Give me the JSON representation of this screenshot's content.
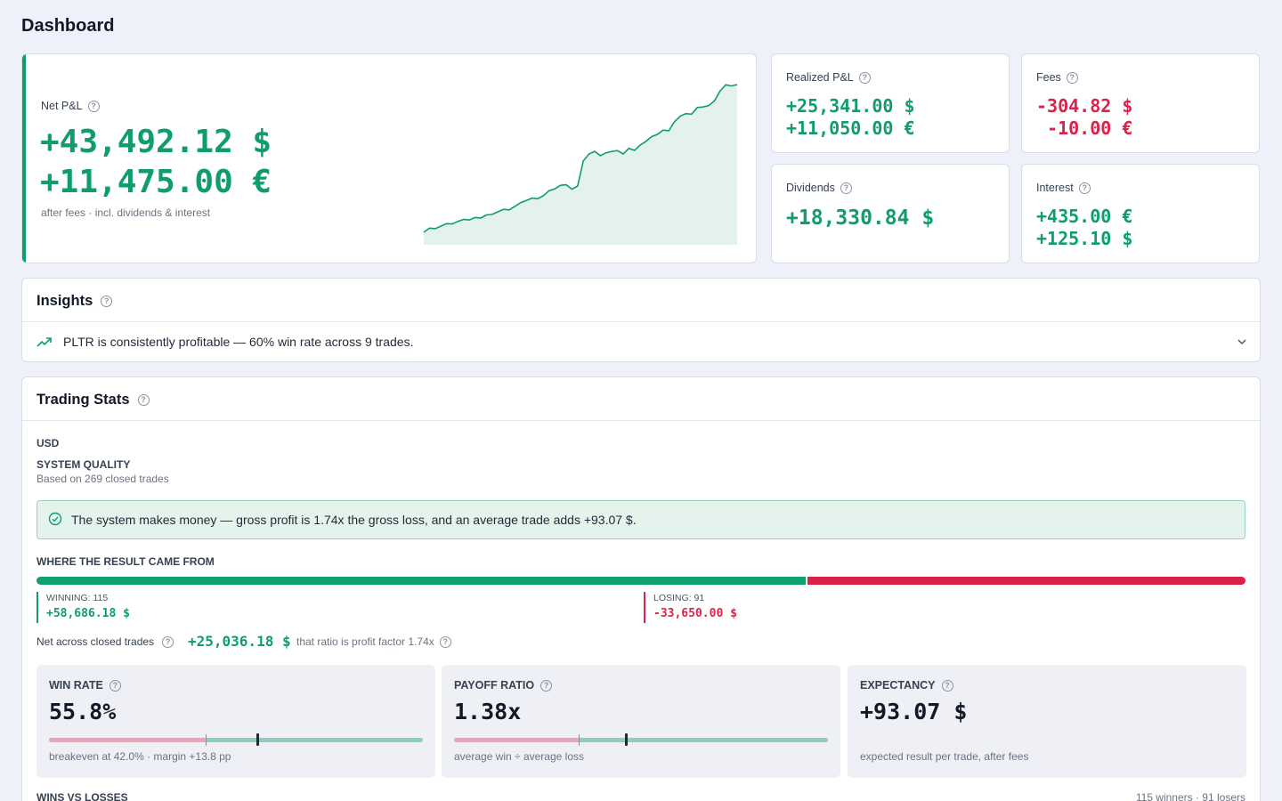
{
  "page": {
    "title": "Dashboard"
  },
  "net_pnl": {
    "label": "Net P&L",
    "usd": "+43,492.12 $",
    "eur": "+11,475.00 €",
    "subtitle": "after fees · incl. dividends & interest"
  },
  "realized": {
    "label": "Realized P&L",
    "usd": "+25,341.00 $",
    "eur": "+11,050.00 €"
  },
  "fees": {
    "label": "Fees",
    "usd": "-304.82 $",
    "eur": " -10.00 €"
  },
  "dividends": {
    "label": "Dividends",
    "usd": "+18,330.84 $"
  },
  "interest": {
    "label": "Interest",
    "eur": "+435.00 €",
    "usd": "+125.10 $"
  },
  "insights": {
    "title": "Insights",
    "items": [
      {
        "text": "PLTR is consistently profitable — 60% win rate across 9 trades."
      }
    ]
  },
  "trading_stats": {
    "title": "Trading Stats",
    "currency": "USD",
    "system_quality": {
      "title": "SYSTEM QUALITY",
      "subtitle": "Based on 269 closed trades"
    },
    "verdict": "The system makes money — gross profit is 1.74x the gross loss, and an average trade adds +93.07 $.",
    "where": {
      "title": "WHERE THE RESULT CAME FROM",
      "winning_fraction": 0.636,
      "winning_label": "WINNING: 115",
      "winning_value": "+58,686.18 $",
      "losing_label": "LOSING: 91",
      "losing_value": "-33,650.00 $"
    },
    "net_across": {
      "label": "Net across closed trades",
      "value": "+25,036.18 $",
      "ratio_note": "that ratio is profit factor 1.74x"
    },
    "kpis": {
      "win_rate": {
        "label": "WIN RATE",
        "value": "55.8%",
        "note": "breakeven at 42.0% · margin +13.8 pp",
        "threshold_fraction": 0.42,
        "value_fraction": 0.558
      },
      "payoff": {
        "label": "PAYOFF RATIO",
        "value": "1.38x",
        "note": "average win ÷ average loss",
        "threshold_fraction": 0.333,
        "value_fraction": 0.46
      },
      "expectancy": {
        "label": "EXPECTANCY",
        "value": "+93.07 $",
        "note": "expected result per trade, after fees"
      }
    },
    "wins_vs_losses": {
      "title": "WINS VS LOSSES",
      "counts": "115 winners · 91 losers"
    }
  },
  "colors": {
    "positive": "#0f9d6b",
    "negative": "#d9234b",
    "background": "#eef1f9"
  },
  "icons": {
    "help": "question-circle-icon",
    "trend": "trending-up-icon",
    "check": "check-circle-icon",
    "chevron": "chevron-down-icon"
  },
  "chart_data": {
    "type": "area",
    "values": [
      0,
      1.5,
      1.3,
      2.2,
      3.1,
      3.0,
      3.9,
      4.6,
      4.4,
      5.3,
      5.1,
      6.2,
      6.4,
      7.3,
      8.2,
      8.0,
      9.3,
      10.6,
      11.4,
      12.2,
      12.0,
      13.1,
      14.9,
      15.5,
      16.8,
      17.0,
      15.4,
      16.5,
      25.5,
      28.0,
      28.9,
      27.4,
      28.4,
      28.9,
      29.2,
      28.0,
      30.0,
      29.3,
      31.2,
      32.5,
      34.2,
      35.0,
      36.5,
      36.3,
      39.5,
      41.5,
      42.4,
      42.2,
      44.6,
      44.8,
      45.3,
      46.9,
      50.5,
      52.7,
      52.3,
      52.8
    ]
  }
}
